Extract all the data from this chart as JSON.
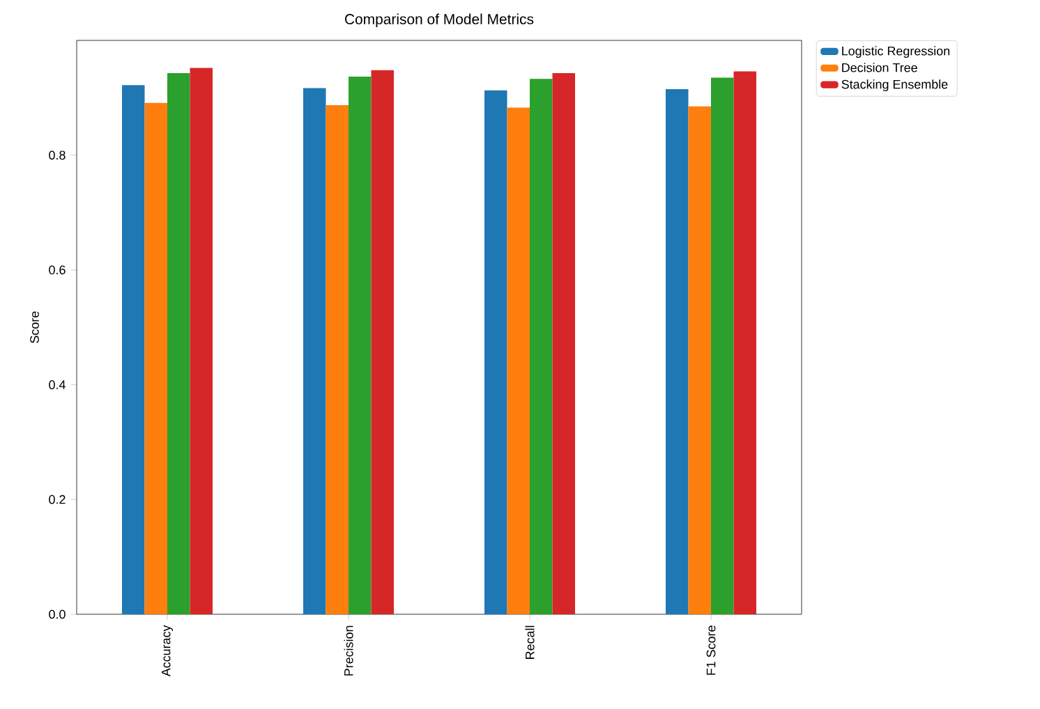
{
  "chart_data": {
    "type": "bar",
    "title": "Comparison of Model Metrics",
    "ylabel": "Score",
    "categories": [
      "Accuracy",
      "Precision",
      "Recall",
      "F1 Score"
    ],
    "series": [
      {
        "name": "Logistic Regression",
        "color": "#1f77b4",
        "values": [
          0.922,
          0.917,
          0.913,
          0.915
        ]
      },
      {
        "name": "Decision Tree",
        "color": "#ff7f0e",
        "values": [
          0.891,
          0.887,
          0.883,
          0.885
        ]
      },
      {
        "color": "#2ca02c",
        "values": [
          0.943,
          0.937,
          0.933,
          0.935
        ]
      },
      {
        "name": "Stacking Ensemble",
        "color": "#d62728",
        "values": [
          0.952,
          0.948,
          0.943,
          0.946
        ]
      }
    ],
    "ylim": [
      0,
      1.0
    ],
    "yticks": [
      {
        "value": 0,
        "label": "0.0"
      },
      {
        "value": 0.2,
        "label": "0.2"
      },
      {
        "value": 0.4,
        "label": "0.4"
      },
      {
        "value": 0.6,
        "label": "0.6"
      },
      {
        "value": 0.8,
        "label": "0.8"
      }
    ],
    "legend": "top right"
  }
}
